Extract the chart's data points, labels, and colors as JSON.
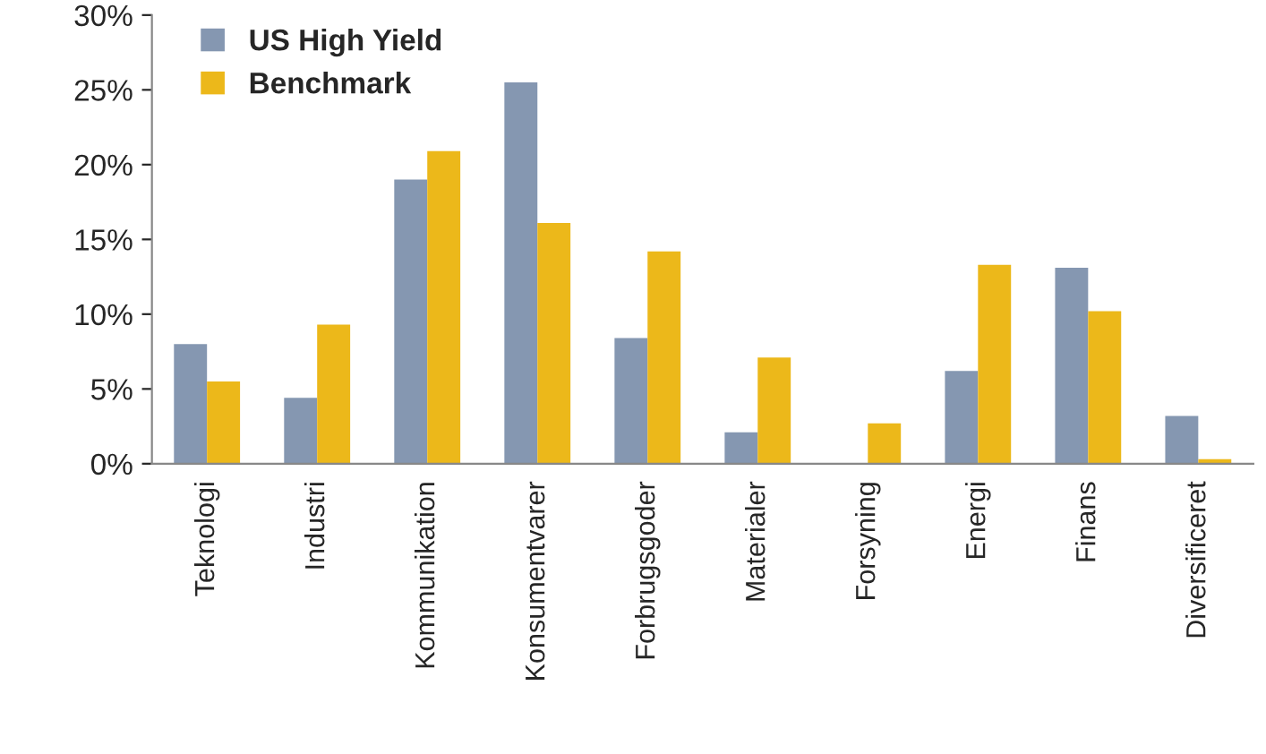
{
  "chart_data": {
    "type": "bar",
    "categories": [
      "Teknologi",
      "Industri",
      "Kommunikation",
      "Konsumentvarer",
      "Forbrugsgoder",
      "Materialer",
      "Forsyning",
      "Energi",
      "Finans",
      "Diversificeret"
    ],
    "series": [
      {
        "name": "US High Yield",
        "color": "#8597b1",
        "values": [
          8.0,
          4.4,
          19.0,
          25.5,
          8.4,
          2.1,
          null,
          6.2,
          13.1,
          3.2
        ]
      },
      {
        "name": "Benchmark",
        "color": "#ecb81a",
        "values": [
          5.5,
          9.3,
          20.9,
          16.1,
          14.2,
          7.1,
          2.7,
          13.3,
          10.2,
          0.3
        ]
      }
    ],
    "ylim": [
      0,
      30
    ],
    "yticks": [
      {
        "value": 0,
        "label": "0%"
      },
      {
        "value": 5,
        "label": "5%"
      },
      {
        "value": 10,
        "label": "10%"
      },
      {
        "value": 15,
        "label": "15%"
      },
      {
        "value": 20,
        "label": "20%"
      },
      {
        "value": 25,
        "label": "25%"
      },
      {
        "value": 30,
        "label": "30%"
      }
    ],
    "grid": false,
    "legend": "top left"
  }
}
